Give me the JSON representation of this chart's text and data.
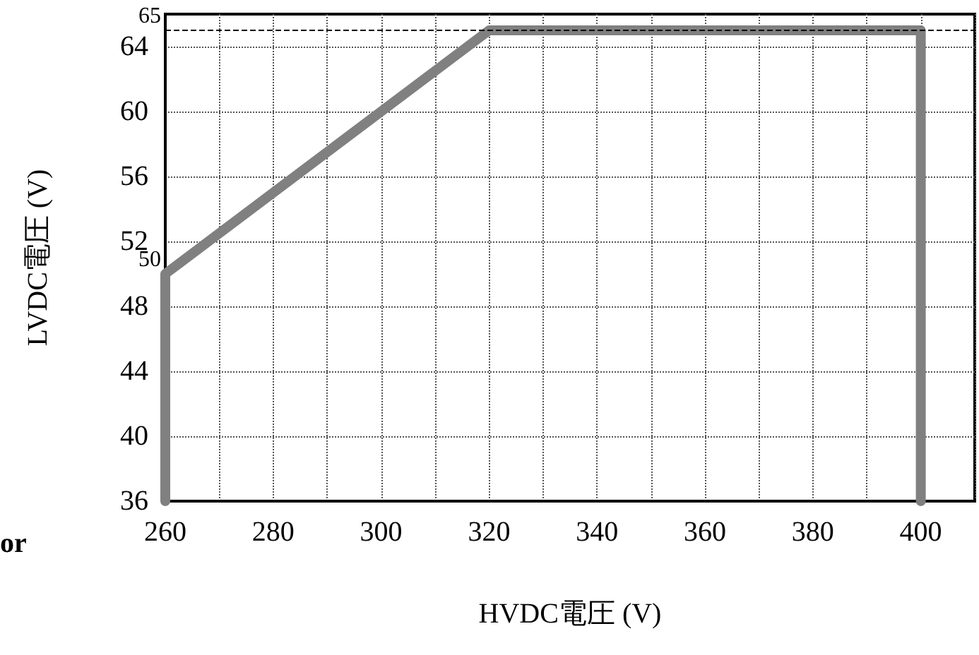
{
  "chart_data": {
    "type": "line",
    "xlabel": "HVDC電圧 (V)",
    "ylabel": "LVDC電圧 (V)",
    "x": [
      260,
      260,
      320,
      400,
      400
    ],
    "series": [
      {
        "color": "#808080",
        "values": [
          36,
          50,
          65,
          65,
          36
        ]
      }
    ],
    "xlim": [
      260,
      410
    ],
    "xticks": [
      260,
      {
        "value": 270,
        "label": null
      },
      280,
      {
        "value": 290,
        "label": null
      },
      300,
      {
        "value": 310,
        "label": null
      },
      320,
      {
        "value": 330,
        "label": null
      },
      340,
      {
        "value": 350,
        "label": null
      },
      360,
      {
        "value": 370,
        "label": null
      },
      380,
      {
        "value": 390,
        "label": null
      },
      400,
      {
        "value": 410,
        "label": null
      }
    ],
    "ylim": [
      36,
      66
    ],
    "yticks": [
      36,
      40,
      44,
      48,
      52,
      56,
      60,
      64
    ],
    "grid": true,
    "line_style": "solid",
    "ref_lines": [
      {
        "axis": "y",
        "value": 65,
        "color": "#000000",
        "line_style": "dashed"
      }
    ],
    "annotations": [
      {
        "text": "50",
        "x": 260,
        "y": 50
      },
      {
        "text": "65",
        "x": 260,
        "y": 65
      },
      "or"
    ]
  }
}
